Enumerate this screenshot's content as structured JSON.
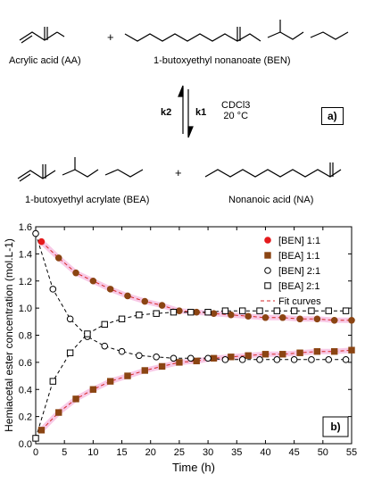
{
  "scheme": {
    "reactant_1": "Acrylic acid (AA)",
    "reactant_2": "1-butoxyethyl nonanoate (BEN)",
    "product_1": "1-butoxyethyl acrylate (BEA)",
    "product_2": "Nonanoic acid (NA)",
    "plus": "+",
    "k1": "k1",
    "k2": "k2",
    "solvent": "CDCl3",
    "temperature": "20 °C",
    "panel_a": "a)"
  },
  "chart_data": {
    "type": "scatter",
    "xlabel": "Time (h)",
    "ylabel": "Hemiacetal ester concentration (mol.L-1)",
    "xlim": [
      0,
      55
    ],
    "ylim": [
      0,
      1.6
    ],
    "xticks": [
      0,
      5,
      10,
      15,
      20,
      25,
      30,
      35,
      40,
      45,
      50,
      55
    ],
    "yticks": [
      0.0,
      0.2,
      0.4,
      0.6,
      0.8,
      1.0,
      1.2,
      1.4,
      1.6
    ],
    "panel_label": "b)",
    "legend_position": "right",
    "series": [
      {
        "name": "[BEN] 1:1",
        "marker": "circle-filled",
        "color": "#8b4513",
        "x": [
          1,
          4,
          7,
          10,
          13,
          16,
          19,
          22,
          25,
          28,
          31,
          34,
          37,
          40,
          43,
          46,
          49,
          52,
          55
        ],
        "y": [
          1.49,
          1.37,
          1.26,
          1.2,
          1.14,
          1.09,
          1.05,
          1.02,
          0.98,
          0.97,
          0.96,
          0.95,
          0.94,
          0.93,
          0.93,
          0.92,
          0.92,
          0.91,
          0.91
        ]
      },
      {
        "name": "[BEA] 1:1",
        "marker": "square-filled",
        "color": "#8b4513",
        "x": [
          1,
          4,
          7,
          10,
          13,
          16,
          19,
          22,
          25,
          28,
          31,
          34,
          37,
          40,
          43,
          46,
          49,
          52,
          55
        ],
        "y": [
          0.1,
          0.23,
          0.33,
          0.4,
          0.46,
          0.5,
          0.54,
          0.57,
          0.6,
          0.61,
          0.63,
          0.64,
          0.65,
          0.66,
          0.66,
          0.67,
          0.68,
          0.68,
          0.69
        ]
      },
      {
        "name": "[BEN] 2:1",
        "marker": "circle-open",
        "color": "#000000",
        "x": [
          0,
          3,
          6,
          9,
          12,
          15,
          18,
          21,
          24,
          27,
          30,
          33,
          36,
          39,
          42,
          45,
          48,
          51,
          54
        ],
        "y": [
          1.55,
          1.14,
          0.92,
          0.79,
          0.72,
          0.68,
          0.65,
          0.64,
          0.63,
          0.63,
          0.63,
          0.62,
          0.62,
          0.62,
          0.62,
          0.62,
          0.62,
          0.62,
          0.62
        ]
      },
      {
        "name": "[BEA] 2:1",
        "marker": "square-open",
        "color": "#000000",
        "x": [
          0,
          3,
          6,
          9,
          12,
          15,
          18,
          21,
          24,
          27,
          30,
          33,
          36,
          39,
          42,
          45,
          48,
          51,
          54
        ],
        "y": [
          0.04,
          0.46,
          0.67,
          0.81,
          0.88,
          0.92,
          0.95,
          0.96,
          0.97,
          0.97,
          0.97,
          0.98,
          0.98,
          0.98,
          0.98,
          0.98,
          0.98,
          0.98,
          0.98
        ]
      }
    ],
    "fit_label": "Fit curves",
    "fit_color": "#d62728"
  }
}
